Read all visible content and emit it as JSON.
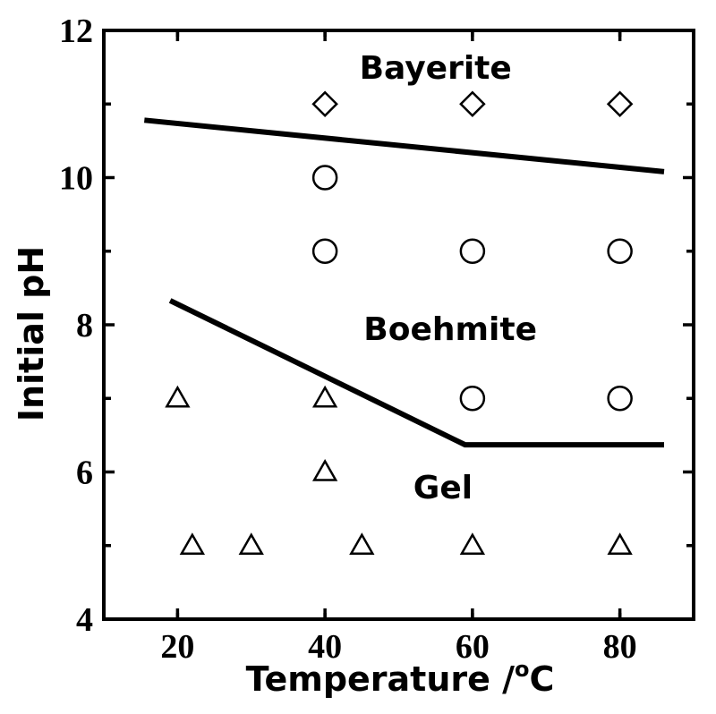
{
  "chart_data": {
    "type": "scatter",
    "xlabel": "Temperature /",
    "xlabel_unit_sup": "o",
    "xlabel_unit": "C",
    "ylabel": "Initial pH",
    "xlim": [
      10,
      90
    ],
    "ylim": [
      4,
      12
    ],
    "x_ticks": [
      20,
      40,
      60,
      80
    ],
    "y_ticks": [
      4,
      6,
      8,
      10,
      12
    ],
    "grid": false,
    "regions": [
      {
        "label": "Bayerite",
        "x": 55,
        "y": 11.5
      },
      {
        "label": "Boehmite",
        "x": 57,
        "y": 7.95
      },
      {
        "label": "Gel",
        "x": 56,
        "y": 5.8
      }
    ],
    "series": [
      {
        "marker": "diamond",
        "points": [
          [
            40,
            11
          ],
          [
            60,
            11
          ],
          [
            80,
            11
          ]
        ]
      },
      {
        "marker": "circle",
        "points": [
          [
            40,
            10
          ],
          [
            40,
            9
          ],
          [
            60,
            9
          ],
          [
            80,
            9
          ],
          [
            60,
            7
          ],
          [
            80,
            7
          ]
        ]
      },
      {
        "marker": "triangle",
        "points": [
          [
            20,
            7
          ],
          [
            40,
            7
          ],
          [
            40,
            6
          ],
          [
            22,
            5
          ],
          [
            30,
            5
          ],
          [
            45,
            5
          ],
          [
            60,
            5
          ],
          [
            80,
            5
          ]
        ]
      }
    ],
    "boundaries": [
      {
        "points": [
          [
            15.5,
            10.78
          ],
          [
            86,
            10.08
          ]
        ]
      },
      {
        "points": [
          [
            19,
            8.33
          ],
          [
            59,
            6.37
          ],
          [
            86,
            6.37
          ]
        ]
      }
    ]
  }
}
